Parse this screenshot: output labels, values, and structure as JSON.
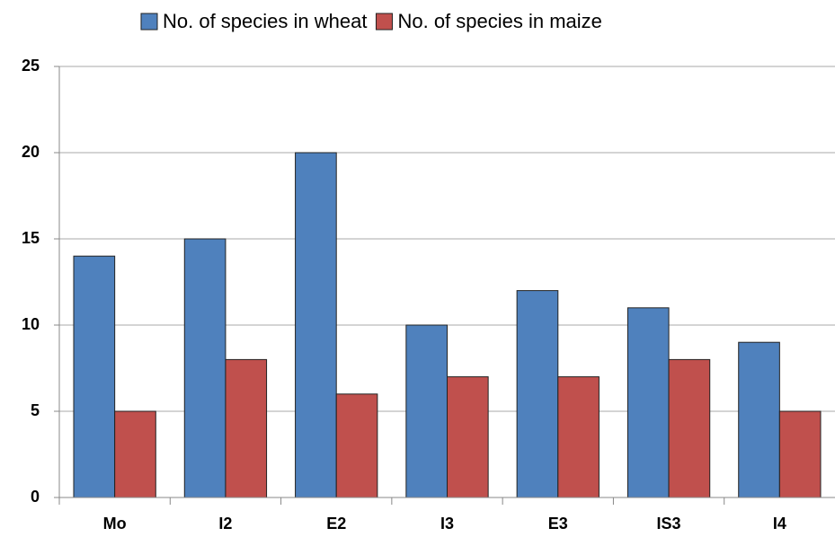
{
  "chart_data": {
    "type": "bar",
    "categories": [
      "Mo",
      "I2",
      "E2",
      "I3",
      "E3",
      "IS3",
      "I4"
    ],
    "series": [
      {
        "name": "No. of species in wheat",
        "color": "#4f81bd",
        "values": [
          14,
          15,
          20,
          10,
          12,
          11,
          9
        ]
      },
      {
        "name": "No. of species in maize",
        "color": "#c0504d",
        "values": [
          5,
          8,
          6,
          7,
          7,
          8,
          5
        ]
      }
    ],
    "ylim": [
      0,
      25
    ],
    "yticks": [
      0,
      5,
      10,
      15,
      20,
      25
    ],
    "grid": true,
    "legend": "top"
  }
}
